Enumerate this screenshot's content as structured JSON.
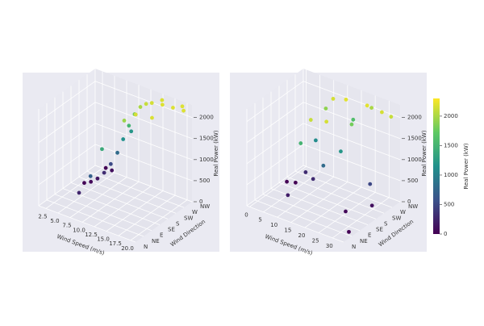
{
  "chart_data": [
    {
      "type": "scatter3d",
      "xlabel": "Wind Speed (m/s)",
      "ylabel": "Wind Direction",
      "zlabel": "Real Power (kW)",
      "xlim": [
        1,
        21
      ],
      "xticks": [
        2.5,
        {
          "value": 5,
          "label": "5.0"
        },
        7.5,
        {
          "value": 10,
          "label": "10.0"
        },
        12.5,
        {
          "value": 15,
          "label": "15.0"
        },
        17.5,
        {
          "value": 20,
          "label": "20.0"
        }
      ],
      "ylim": [
        0,
        315
      ],
      "yticks": [
        {
          "value": 0,
          "label": "N"
        },
        {
          "value": 45,
          "label": "NE"
        },
        {
          "value": 90,
          "label": "E"
        },
        {
          "value": 135,
          "label": "SE"
        },
        {
          "value": 180,
          "label": "S"
        },
        {
          "value": 225,
          "label": "SW"
        },
        {
          "value": 270,
          "label": "W"
        },
        {
          "value": 315,
          "label": "NW"
        }
      ],
      "zlim": [
        0,
        2300
      ],
      "zticks": [
        0,
        500,
        1000,
        1500,
        2000
      ],
      "x": [
        3,
        4,
        5,
        6,
        7,
        8,
        9,
        10,
        11,
        12,
        13,
        14,
        16,
        18,
        20,
        12,
        14,
        17,
        6,
        8,
        10,
        3,
        5,
        9,
        15,
        19
      ],
      "y": [
        200,
        210,
        220,
        230,
        240,
        250,
        255,
        260,
        265,
        270,
        275,
        280,
        285,
        290,
        295,
        180,
        190,
        200,
        90,
        100,
        110,
        320,
        300,
        300,
        310,
        315
      ],
      "z": [
        20,
        60,
        150,
        300,
        520,
        800,
        1150,
        1500,
        1800,
        2000,
        2100,
        2150,
        2180,
        2180,
        2180,
        1950,
        2150,
        2170,
        250,
        700,
        1400,
        10,
        100,
        1200,
        2170,
        2180
      ]
    },
    {
      "type": "scatter3d",
      "xlabel": "Wind Speed (m/s)",
      "ylabel": "Wind Direction",
      "zlabel": "Real Power (kW)",
      "xlim": [
        -1,
        34
      ],
      "xticks": [
        0,
        5,
        10,
        15,
        20,
        25,
        30
      ],
      "ylim": [
        0,
        315
      ],
      "yticks": [
        {
          "value": 0,
          "label": "N"
        },
        {
          "value": 45,
          "label": "NE"
        },
        {
          "value": 90,
          "label": "E"
        },
        {
          "value": 135,
          "label": "SE"
        },
        {
          "value": 180,
          "label": "S"
        },
        {
          "value": 225,
          "label": "SW"
        },
        {
          "value": 270,
          "label": "W"
        },
        {
          "value": 315,
          "label": "NW"
        }
      ],
      "zlim": [
        0,
        2300
      ],
      "zticks": [
        0,
        500,
        1000,
        1500,
        2000
      ],
      "x": [
        0.5,
        3,
        6,
        9,
        12,
        14,
        18,
        25,
        30,
        33,
        10,
        15,
        20,
        22,
        28,
        30,
        12,
        15,
        20,
        8,
        25,
        32,
        18,
        24
      ],
      "y": [
        200,
        210,
        220,
        230,
        240,
        250,
        260,
        270,
        275,
        280,
        200,
        180,
        200,
        230,
        240,
        220,
        100,
        110,
        120,
        90,
        150,
        60,
        300,
        310
      ],
      "z": [
        0,
        10,
        300,
        1100,
        1900,
        2150,
        2200,
        2200,
        2150,
        2100,
        300,
        800,
        1200,
        1800,
        500,
        100,
        1500,
        2100,
        2150,
        200,
        50,
        10,
        1600,
        2000
      ]
    }
  ],
  "colorbar": {
    "label": "Real Power (kW)",
    "colormap": "viridis",
    "lim": [
      0,
      2300
    ],
    "ticks": [
      0,
      500,
      1000,
      1500,
      2000
    ]
  }
}
